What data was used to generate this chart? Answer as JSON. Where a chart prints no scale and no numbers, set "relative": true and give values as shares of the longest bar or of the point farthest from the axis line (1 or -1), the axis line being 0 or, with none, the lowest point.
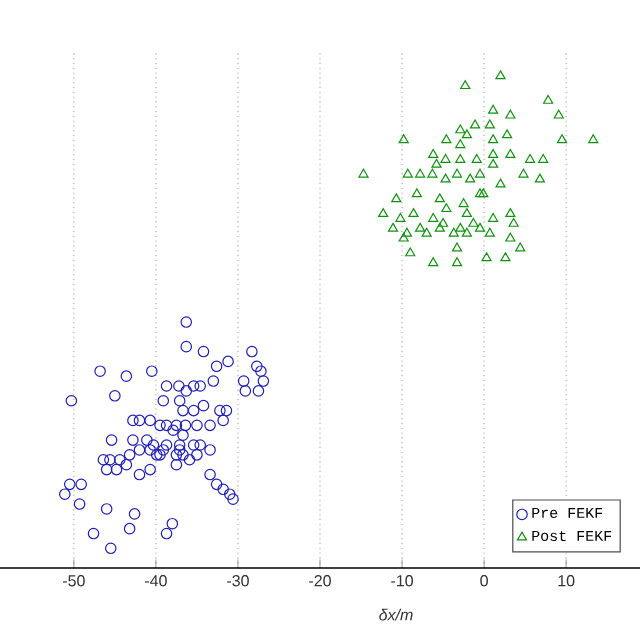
{
  "chart_data": {
    "type": "scatter",
    "xlabel": "δx/m",
    "relative": true,
    "xlim": [
      -59,
      19
    ],
    "xticks": [
      -50,
      -40,
      -30,
      -20,
      -10,
      0,
      10
    ],
    "grid": true,
    "legend": "bottom right",
    "series": [
      {
        "name": "Pre  FEKF",
        "color": "#1f1fb4",
        "marker": "circle",
        "x": [
          -36.3,
          -36.3,
          -34.2,
          -28.3,
          -27.7,
          -27.2,
          -26.9,
          -27.5,
          -29.1,
          -29.3,
          -31.2,
          -32.6,
          -33.0,
          -34.6,
          -35.4,
          -36.3,
          -37.2,
          -38.7,
          -39.1,
          -40.5,
          -43.6,
          -46.8,
          -45.0,
          -50.3,
          -37.1,
          -36.7,
          -35.4,
          -34.2,
          -32.2,
          -31.4,
          -31.8,
          -33.4,
          -35.0,
          -36.4,
          -37.5,
          -38.7,
          -39.5,
          -40.7,
          -42.0,
          -42.8,
          -36.7,
          -37.9,
          -45.4,
          -42.8,
          -40.3,
          -38.7,
          -37.1,
          -34.6,
          -33.4,
          -35.0,
          -35.9,
          -36.7,
          -37.5,
          -39.1,
          -39.9,
          -40.7,
          -42.0,
          -43.2,
          -44.4,
          -45.6,
          -46.4,
          -44.8,
          -46.0,
          -43.6,
          -42.0,
          -40.7,
          -37.5,
          -33.4,
          -32.6,
          -31.8,
          -31.0,
          -30.6,
          -50.5,
          -51.1,
          -49.1,
          -49.3,
          -46.0,
          -42.6,
          -47.6,
          -43.2,
          -38.7,
          -38.0,
          -45.5,
          -37.1,
          -35.4,
          -41.1,
          -39.5
        ],
        "values": [
          0.5,
          0.45,
          0.44,
          0.44,
          0.41,
          0.4,
          0.38,
          0.36,
          0.36,
          0.38,
          0.42,
          0.41,
          0.38,
          0.37,
          0.37,
          0.36,
          0.37,
          0.37,
          0.34,
          0.4,
          0.39,
          0.4,
          0.35,
          0.34,
          0.34,
          0.32,
          0.32,
          0.33,
          0.32,
          0.32,
          0.3,
          0.29,
          0.29,
          0.29,
          0.29,
          0.29,
          0.29,
          0.3,
          0.3,
          0.3,
          0.27,
          0.28,
          0.26,
          0.26,
          0.25,
          0.25,
          0.25,
          0.25,
          0.24,
          0.23,
          0.22,
          0.23,
          0.23,
          0.24,
          0.23,
          0.24,
          0.24,
          0.23,
          0.22,
          0.22,
          0.22,
          0.2,
          0.2,
          0.21,
          0.19,
          0.2,
          0.21,
          0.19,
          0.17,
          0.16,
          0.15,
          0.14,
          0.17,
          0.15,
          0.17,
          0.13,
          0.12,
          0.11,
          0.07,
          0.08,
          0.07,
          0.09,
          0.04,
          0.24,
          0.25,
          0.26,
          0.23
        ]
      },
      {
        "name": "Post FEKF",
        "color": "#109010",
        "marker": "triangle",
        "x": [
          -2.3,
          2.0,
          7.8,
          9.1,
          9.5,
          13.3,
          -9.8,
          -14.7,
          1.1,
          3.2,
          -1.1,
          -2.9,
          0.7,
          2.8,
          -4.6,
          -2.1,
          1.1,
          3.2,
          5.6,
          7.2,
          -6.2,
          -4.7,
          -2.9,
          -0.9,
          1.1,
          4.8,
          6.8,
          -9.3,
          -7.8,
          -6.3,
          -4.7,
          -3.3,
          -1.7,
          -0.1,
          2.0,
          -10.7,
          -8.2,
          -5.4,
          -2.5,
          -12.3,
          -10.2,
          -8.6,
          -6.2,
          -5.0,
          -2.9,
          -1.3,
          1.1,
          3.2,
          -11.1,
          -9.4,
          -7.0,
          -5.4,
          -3.7,
          -2.1,
          -0.5,
          0.7,
          3.2,
          -9.8,
          -9.0,
          -3.3,
          4.4,
          0.3,
          2.6,
          -6.2,
          -3.3,
          -0.5,
          -4.6,
          -2.1,
          -7.8,
          1.1,
          -2.9,
          -5.8,
          3.6,
          -0.5
        ],
        "values": [
          0.98,
          1.0,
          0.95,
          0.92,
          0.87,
          0.87,
          0.87,
          0.8,
          0.93,
          0.92,
          0.9,
          0.89,
          0.9,
          0.88,
          0.87,
          0.88,
          0.87,
          0.84,
          0.83,
          0.83,
          0.84,
          0.83,
          0.83,
          0.83,
          0.82,
          0.8,
          0.79,
          0.8,
          0.8,
          0.8,
          0.79,
          0.8,
          0.79,
          0.76,
          0.78,
          0.75,
          0.76,
          0.75,
          0.74,
          0.72,
          0.71,
          0.72,
          0.71,
          0.7,
          0.69,
          0.7,
          0.71,
          0.72,
          0.69,
          0.68,
          0.68,
          0.69,
          0.68,
          0.68,
          0.69,
          0.68,
          0.67,
          0.67,
          0.64,
          0.65,
          0.65,
          0.63,
          0.63,
          0.62,
          0.62,
          0.76,
          0.73,
          0.72,
          0.69,
          0.84,
          0.86,
          0.82,
          0.7,
          0.8
        ]
      }
    ]
  }
}
